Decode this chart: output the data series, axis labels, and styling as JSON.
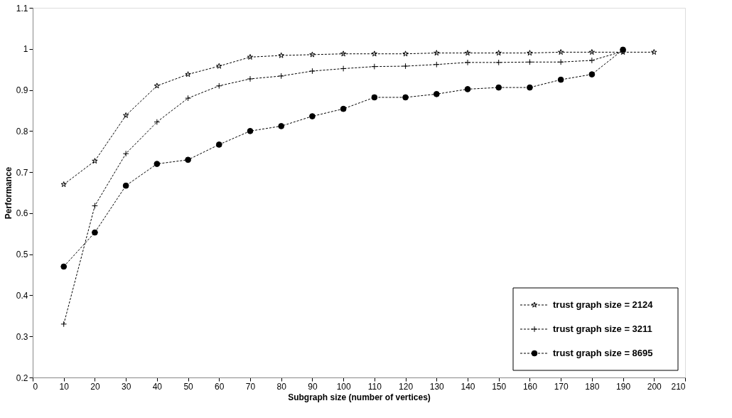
{
  "chart_data": {
    "type": "line",
    "xlabel": "Subgraph size (number of vertices)",
    "ylabel": "Performance",
    "x": [
      10,
      20,
      30,
      40,
      50,
      60,
      70,
      80,
      90,
      100,
      110,
      120,
      130,
      140,
      150,
      160,
      170,
      180,
      190,
      200
    ],
    "xlim": [
      0,
      210
    ],
    "xticks": [
      0,
      10,
      20,
      30,
      40,
      50,
      60,
      70,
      80,
      90,
      100,
      110,
      120,
      130,
      140,
      150,
      160,
      170,
      180,
      190,
      200,
      210
    ],
    "ylim": [
      0.2,
      1.1
    ],
    "yticks": [
      0.2,
      0.3,
      0.4,
      0.5,
      0.6,
      0.7,
      0.8,
      0.9,
      1,
      1.1
    ],
    "grid": false,
    "legend": "bottom right",
    "line_style": "dashed",
    "series": [
      {
        "name": "trust graph size = 2124",
        "color": "#000000",
        "marker": "star",
        "values": [
          0.67,
          0.727,
          0.838,
          0.91,
          0.938,
          0.958,
          0.98,
          0.984,
          0.986,
          0.988,
          0.988,
          0.988,
          0.99,
          0.99,
          0.99,
          0.99,
          0.992,
          0.992,
          0.992,
          0.992
        ]
      },
      {
        "name": "trust graph size = 3211",
        "color": "#000000",
        "marker": "cross",
        "values": [
          0.33,
          0.618,
          0.745,
          0.822,
          0.88,
          0.91,
          0.927,
          0.934,
          0.946,
          0.952,
          0.957,
          0.958,
          0.962,
          0.967,
          0.967,
          0.968,
          0.968,
          0.972,
          0.994,
          null
        ]
      },
      {
        "name": "trust graph size = 8695",
        "color": "#000000",
        "marker": "circle",
        "values": [
          0.47,
          0.553,
          0.667,
          0.72,
          0.73,
          0.767,
          0.8,
          0.812,
          0.836,
          0.854,
          0.882,
          0.882,
          0.89,
          0.902,
          0.906,
          0.906,
          0.925,
          0.938,
          0.998,
          null
        ]
      }
    ]
  }
}
